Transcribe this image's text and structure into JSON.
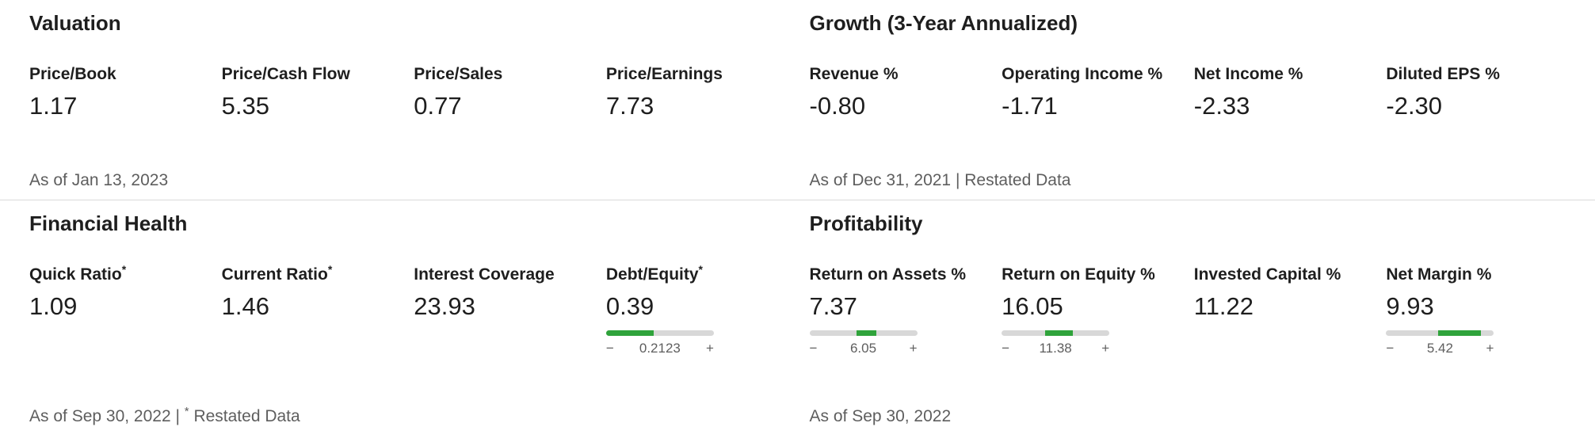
{
  "colors": {
    "text": "#1e1e1e",
    "muted_text": "#5e5e5e",
    "divider": "#d9d9d9",
    "gauge_track": "#d8d8d8",
    "gauge_fill": "#2fa33b"
  },
  "sections": {
    "valuation": {
      "title": "Valuation",
      "as_of": "As of Jan 13, 2023",
      "metrics": [
        {
          "label": "Price/Book",
          "value": "1.17"
        },
        {
          "label": "Price/Cash Flow",
          "value": "5.35"
        },
        {
          "label": "Price/Sales",
          "value": "0.77"
        },
        {
          "label": "Price/Earnings",
          "value": "7.73"
        }
      ]
    },
    "growth": {
      "title": "Growth (3-Year Annualized)",
      "as_of": "As of Dec 31, 2021 | Restated Data",
      "metrics": [
        {
          "label": "Revenue %",
          "value": "-0.80"
        },
        {
          "label": "Operating Income %",
          "value": "-1.71"
        },
        {
          "label": "Net Income %",
          "value": "-2.33"
        },
        {
          "label": "Diluted EPS %",
          "value": "-2.30"
        }
      ]
    },
    "financial_health": {
      "title": "Financial Health",
      "as_of_prefix": "As of Sep 30, 2022 | ",
      "as_of_star": "*",
      "as_of_suffix": " Restated Data",
      "metrics": [
        {
          "label": "Quick Ratio",
          "star": "*",
          "value": "1.09"
        },
        {
          "label": "Current Ratio",
          "star": "*",
          "value": "1.46"
        },
        {
          "label": "Interest Coverage",
          "value": "23.93"
        },
        {
          "label": "Debt/Equity",
          "star": "*",
          "value": "0.39",
          "gauge": {
            "benchmark": "0.2123",
            "minus_label": "−",
            "plus_label": "+",
            "fill_start_pct": 0,
            "fill_end_pct": 44
          }
        }
      ]
    },
    "profitability": {
      "title": "Profitability",
      "as_of": "As of Sep 30, 2022",
      "metrics": [
        {
          "label": "Return on Assets %",
          "value": "7.37",
          "gauge": {
            "benchmark": "6.05",
            "minus_label": "−",
            "plus_label": "+",
            "fill_start_pct": 44,
            "fill_end_pct": 62
          }
        },
        {
          "label": "Return on Equity %",
          "value": "16.05",
          "gauge": {
            "benchmark": "11.38",
            "minus_label": "−",
            "plus_label": "+",
            "fill_start_pct": 40,
            "fill_end_pct": 66
          }
        },
        {
          "label": "Invested Capital %",
          "value": "11.22"
        },
        {
          "label": "Net Margin %",
          "value": "9.93",
          "gauge": {
            "benchmark": "5.42",
            "minus_label": "−",
            "plus_label": "+",
            "fill_start_pct": 48,
            "fill_end_pct": 88
          }
        }
      ]
    }
  }
}
